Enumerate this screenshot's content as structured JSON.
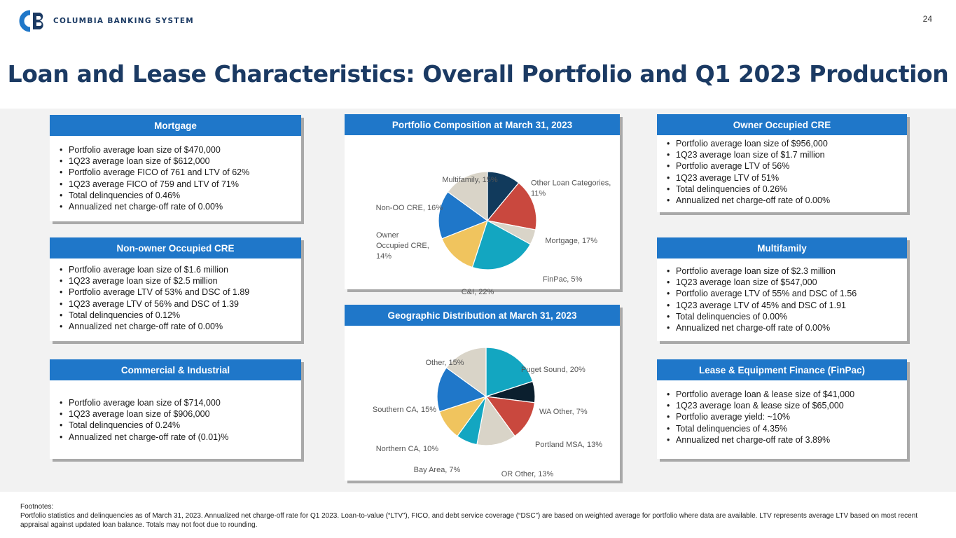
{
  "header": {
    "logo_monogram": "CB",
    "logo_text": "COLUMBIA BANKING SYSTEM",
    "page_number": "24",
    "title": "Loan and Lease Characteristics: Overall Portfolio and Q1 2023 Production"
  },
  "colors": {
    "brand_navy": "#1b3a63",
    "header_blue": "#1f77c9",
    "band_gray": "#f2f2f2"
  },
  "cards": {
    "mortgage": {
      "title": "Mortgage",
      "bullets": [
        "Portfolio average loan size of $470,000",
        "1Q23 average loan size of $612,000",
        "Portfolio average FICO of 761 and LTV of 62%",
        "1Q23 average FICO of 759 and LTV of 71%",
        "Total delinquencies of 0.46%",
        "Annualized net charge-off rate of 0.00%"
      ]
    },
    "non_owner_cre": {
      "title": "Non-owner Occupied CRE",
      "bullets": [
        "Portfolio average loan size of $1.6 million",
        "1Q23 average loan size of $2.5 million",
        "Portfolio average LTV of 53% and DSC of 1.89",
        "1Q23 average LTV of 56% and DSC of 1.39",
        "Total delinquencies of 0.12%",
        "Annualized net charge-off rate of 0.00%"
      ]
    },
    "commercial_industrial": {
      "title": "Commercial & Industrial",
      "bullets": [
        "Portfolio average loan size of $714,000",
        "1Q23 average loan size of $906,000",
        "Total delinquencies of 0.24%",
        "Annualized net charge-off rate of (0.01)%"
      ]
    },
    "owner_cre": {
      "title": "Owner Occupied CRE",
      "bullets": [
        "Portfolio average loan size of $956,000",
        "1Q23 average loan size of $1.7 million",
        "Portfolio average LTV of 56%",
        "1Q23 average LTV of 51%",
        "Total delinquencies of 0.26%",
        "Annualized net charge-off rate of 0.00%"
      ]
    },
    "multifamily": {
      "title": "Multifamily",
      "bullets": [
        "Portfolio average loan size of $2.3 million",
        "1Q23 average loan size of $547,000",
        "Portfolio average LTV of 55% and DSC of 1.56",
        "1Q23 average LTV of 45% and DSC of 1.91",
        "Total delinquencies of 0.00%",
        "Annualized net charge-off rate of 0.00%"
      ]
    },
    "finpac": {
      "title": "Lease & Equipment Finance (FinPac)",
      "bullets": [
        "Portfolio average loan & lease size of $41,000",
        "1Q23 average loan & lease size of $65,000",
        "Portfolio average yield: ~10%",
        "Total delinquencies of 4.35%",
        "Annualized net charge-off rate of 3.89%"
      ]
    }
  },
  "chart_data": [
    {
      "type": "pie",
      "title": "Portfolio Composition at March 31, 2023",
      "slices": [
        {
          "label": "Other Loan Categories, 11%",
          "value": 11,
          "color": "#113a5c"
        },
        {
          "label": "Mortgage, 17%",
          "value": 17,
          "color": "#c9483e"
        },
        {
          "label": "FinPac, 5%",
          "value": 5,
          "color": "#d9d4c8"
        },
        {
          "label": "C&I, 22%",
          "value": 22,
          "color": "#13a6c1"
        },
        {
          "label": "Owner Occupied CRE, 14%",
          "value": 14,
          "color": "#f0c45e"
        },
        {
          "label": "Non-OO CRE, 16%",
          "value": 16,
          "color": "#1f77c9"
        },
        {
          "label": "Multifamily, 15%",
          "value": 15,
          "color": "#d9d4c8"
        }
      ]
    },
    {
      "type": "pie",
      "title": "Geographic Distribution at March 31, 2023",
      "slices": [
        {
          "label": "Puget Sound, 20%",
          "value": 20,
          "color": "#13a6c1"
        },
        {
          "label": "WA Other, 7%",
          "value": 7,
          "color": "#0b1f2e"
        },
        {
          "label": "Portland MSA, 13%",
          "value": 13,
          "color": "#c9483e"
        },
        {
          "label": "OR Other, 13%",
          "value": 13,
          "color": "#d9d4c8"
        },
        {
          "label": "Bay Area, 7%",
          "value": 7,
          "color": "#13a6c1"
        },
        {
          "label": "Northern CA, 10%",
          "value": 10,
          "color": "#f0c45e"
        },
        {
          "label": "Southern CA, 15%",
          "value": 15,
          "color": "#1f77c9"
        },
        {
          "label": "Other, 15%",
          "value": 15,
          "color": "#d9d4c8"
        }
      ]
    }
  ],
  "footnotes": {
    "heading": "Footnotes:",
    "text": "Portfolio statistics and delinquencies as of March 31, 2023. Annualized net charge-off rate for Q1 2023. Loan-to-value (“LTV”), FICO, and debt service coverage (“DSC”) are based on weighted average for portfolio where data are available. LTV represents average LTV based on most recent appraisal against updated loan balance.  Totals may not foot due to rounding."
  }
}
